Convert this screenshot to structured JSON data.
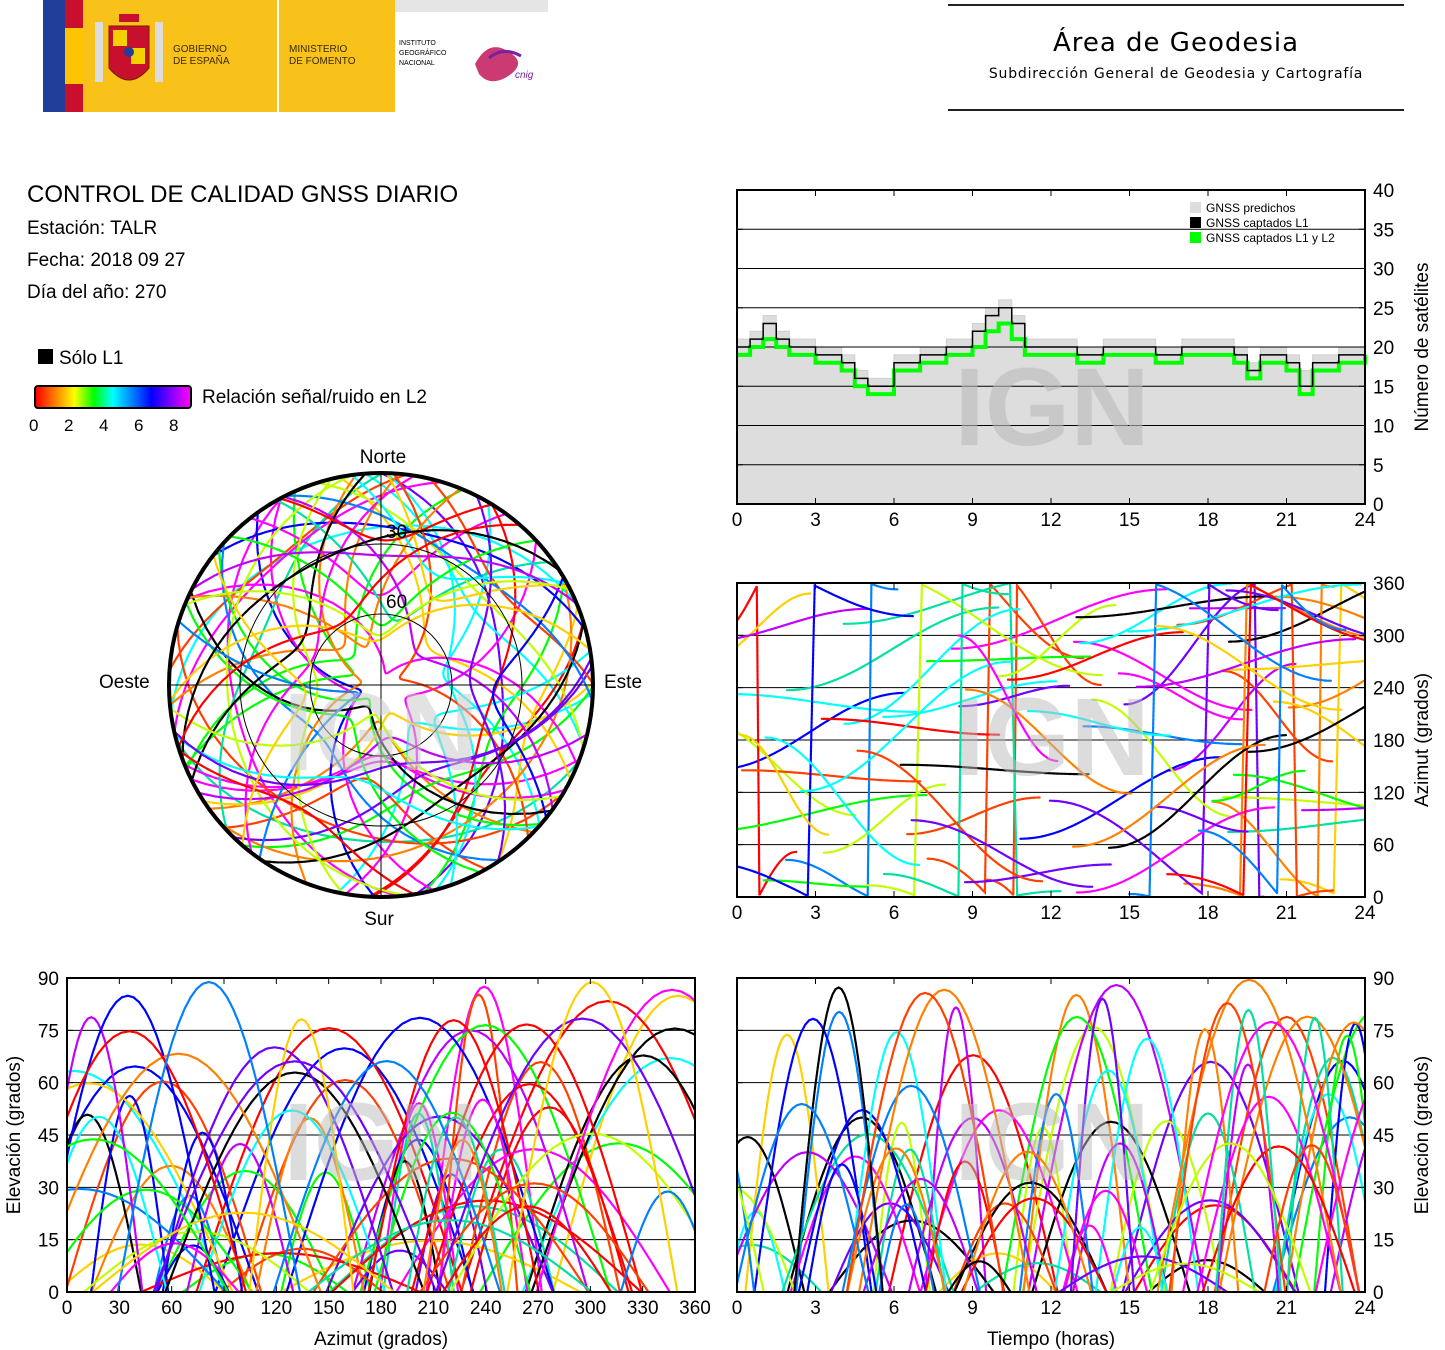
{
  "header": {
    "gov_line1": "GOBIERNO",
    "gov_line2": "DE ESPAÑA",
    "min_line1": "MINISTERIO",
    "min_line2": "DE FOMENTO",
    "ign_line1": "INSTITUTO",
    "ign_line2": "GEOGRÁFICO",
    "ign_line3": "NACIONAL",
    "cnig": "cnig",
    "area_title": "Área de Geodesia",
    "area_subtitle": "Subdirección General de Geodesia y Cartografía"
  },
  "info": {
    "title": "CONTROL DE CALIDAD GNSS DIARIO",
    "station": "Estación: TALR",
    "date": "Fecha: 2018 09 27",
    "doy": "Día del año: 270",
    "legend_l1": "Sólo L1",
    "legend_snr": "Relación señal/ruido en L2",
    "snr_ticks": [
      "0",
      "2",
      "4",
      "6",
      "8"
    ],
    "colors": {
      "l1_only": "#000000",
      "predicted": "#dddddd",
      "captured_l1_l2": "#00ff00"
    }
  },
  "watermark": "IGN",
  "skyplot": {
    "north": "Norte",
    "south": "Sur",
    "west": "Oeste",
    "east": "Este",
    "ring_labels": [
      "30",
      "60"
    ]
  },
  "chart_data": [
    {
      "type": "line",
      "ylabel": "Número de satélites",
      "xlim": [
        0,
        24
      ],
      "ylim": [
        0,
        40
      ],
      "xticks": [
        "0",
        "3",
        "6",
        "9",
        "12",
        "15",
        "18",
        "21",
        "24"
      ],
      "yticks": [
        "0",
        "5",
        "10",
        "15",
        "20",
        "25",
        "30",
        "35",
        "40"
      ],
      "legend": [
        "GNSS predichos",
        "GNSS captados L1",
        "GNSS captados L1 y L2"
      ],
      "legend_position": "top-right",
      "series": [
        {
          "name": "GNSS predichos",
          "x": [
            0,
            0.5,
            1,
            1.5,
            2,
            3,
            4,
            4.5,
            5,
            6,
            7,
            8,
            9,
            9.5,
            10,
            10.5,
            11,
            12,
            13,
            14,
            15,
            16,
            17,
            18,
            19,
            19.5,
            20,
            21,
            21.5,
            22,
            23,
            24
          ],
          "values": [
            21,
            22,
            24,
            22,
            21,
            20,
            19,
            17,
            16,
            19,
            20,
            21,
            23,
            25,
            26,
            24,
            21,
            21,
            20,
            21,
            21,
            20,
            21,
            21,
            20,
            18,
            20,
            19,
            17,
            19,
            20,
            21
          ]
        },
        {
          "name": "GNSS captados L1",
          "x": [
            0,
            0.5,
            1,
            1.5,
            2,
            3,
            4,
            4.5,
            5,
            6,
            7,
            8,
            9,
            9.5,
            10,
            10.5,
            11,
            12,
            13,
            14,
            15,
            16,
            17,
            18,
            19,
            19.5,
            20,
            21,
            21.5,
            22,
            23,
            24
          ],
          "values": [
            20,
            21,
            23,
            21,
            20,
            19,
            18,
            16,
            15,
            18,
            19,
            20,
            22,
            24,
            25,
            23,
            20,
            20,
            19,
            20,
            20,
            19,
            20,
            20,
            19,
            17,
            19,
            18,
            15,
            18,
            19,
            20
          ]
        },
        {
          "name": "GNSS captados L1 y L2",
          "x": [
            0,
            0.5,
            1,
            1.5,
            2,
            3,
            4,
            4.5,
            5,
            6,
            7,
            8,
            9,
            9.5,
            10,
            10.5,
            11,
            12,
            13,
            14,
            15,
            16,
            17,
            18,
            19,
            19.5,
            20,
            21,
            21.5,
            22,
            23,
            24
          ],
          "values": [
            19,
            20,
            21,
            20,
            19,
            18,
            17,
            15,
            14,
            17,
            18,
            19,
            20,
            22,
            23,
            21,
            19,
            19,
            18,
            19,
            19,
            18,
            19,
            19,
            18,
            16,
            18,
            17,
            14,
            17,
            18,
            19
          ]
        }
      ]
    },
    {
      "type": "scatter",
      "ylabel": "Azimut (grados)",
      "xlim": [
        0,
        24
      ],
      "ylim": [
        0,
        360
      ],
      "xticks": [
        "0",
        "3",
        "6",
        "9",
        "12",
        "15",
        "18",
        "21",
        "24"
      ],
      "yticks": [
        "0",
        "60",
        "120",
        "180",
        "240",
        "300",
        "360"
      ]
    },
    {
      "type": "scatter",
      "xlabel": "Azimut (grados)",
      "ylabel": "Elevación (grados)",
      "xlim": [
        0,
        360
      ],
      "ylim": [
        0,
        90
      ],
      "xticks": [
        "0",
        "30",
        "60",
        "90",
        "120",
        "150",
        "180",
        "210",
        "240",
        "270",
        "300",
        "330",
        "360"
      ],
      "yticks": [
        "0",
        "15",
        "30",
        "45",
        "60",
        "75",
        "90"
      ]
    },
    {
      "type": "line",
      "xlabel": "Tiempo (horas)",
      "ylabel": "Elevación (grados)",
      "xlim": [
        0,
        24
      ],
      "ylim": [
        0,
        90
      ],
      "xticks": [
        "0",
        "3",
        "6",
        "9",
        "12",
        "15",
        "18",
        "21",
        "24"
      ],
      "yticks": [
        "0",
        "15",
        "30",
        "45",
        "60",
        "75",
        "90"
      ]
    }
  ]
}
